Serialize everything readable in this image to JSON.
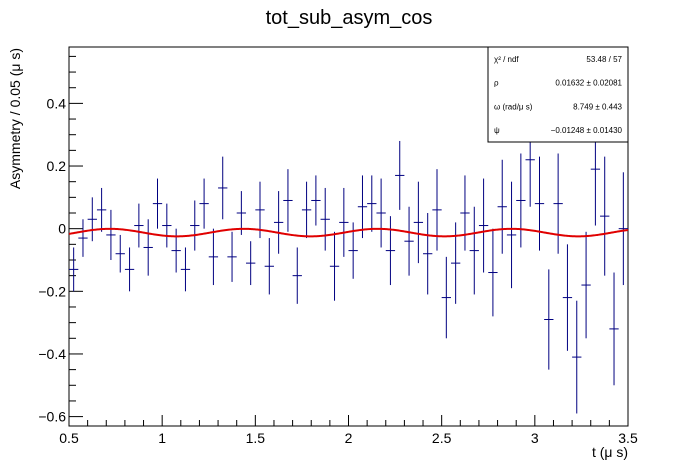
{
  "chart_data": {
    "type": "scatter",
    "title": "tot_sub_asym_cos",
    "xlabel": "t (μ s)",
    "ylabel": "Asymmetry / 0.05 (μ s)",
    "xlim": [
      0.5,
      3.5
    ],
    "ylim": [
      -0.63,
      0.58
    ],
    "x_ticks": [
      "0.5",
      "1",
      "1.5",
      "2",
      "2.5",
      "3",
      "3.5"
    ],
    "y_ticks": [
      "−0.6",
      "−0.4",
      "−0.2",
      "0",
      "0.2",
      "0.4"
    ],
    "x_tick_values": [
      0.5,
      1,
      1.5,
      2,
      2.5,
      3,
      3.5
    ],
    "y_tick_values": [
      -0.6,
      -0.4,
      -0.2,
      0,
      0.2,
      0.4
    ],
    "bin_width": 0.05,
    "series": [
      {
        "color": "#000080",
        "x": [
          0.525,
          0.575,
          0.625,
          0.675,
          0.725,
          0.775,
          0.825,
          0.875,
          0.925,
          0.975,
          1.025,
          1.075,
          1.125,
          1.175,
          1.225,
          1.275,
          1.325,
          1.375,
          1.425,
          1.475,
          1.525,
          1.575,
          1.625,
          1.675,
          1.725,
          1.775,
          1.825,
          1.875,
          1.925,
          1.975,
          2.025,
          2.075,
          2.125,
          2.175,
          2.225,
          2.275,
          2.325,
          2.375,
          2.425,
          2.475,
          2.525,
          2.575,
          2.625,
          2.675,
          2.725,
          2.775,
          2.825,
          2.875,
          2.925,
          2.975,
          3.025,
          3.075,
          3.125,
          3.175,
          3.225,
          3.275,
          3.325,
          3.375,
          3.425,
          3.475
        ],
        "y": [
          -0.13,
          -0.03,
          0.03,
          0.06,
          -0.02,
          -0.08,
          -0.13,
          0.01,
          -0.06,
          0.08,
          0.01,
          -0.07,
          -0.13,
          0.01,
          0.08,
          -0.09,
          0.13,
          -0.09,
          0.05,
          -0.11,
          0.06,
          -0.12,
          0.02,
          0.09,
          -0.15,
          0.06,
          0.09,
          0.03,
          -0.12,
          0.02,
          -0.07,
          0.07,
          0.08,
          0.05,
          -0.07,
          0.17,
          -0.04,
          0.02,
          -0.08,
          0.06,
          -0.22,
          -0.11,
          0.05,
          -0.07,
          0.01,
          -0.14,
          0.07,
          -0.02,
          0.09,
          0.22,
          0.08,
          -0.29,
          0.08,
          -0.22,
          -0.41,
          -0.18,
          0.19,
          0.04,
          -0.32,
          0
        ],
        "yerr": [
          0.07,
          0.06,
          0.07,
          0.07,
          0.08,
          0.06,
          0.07,
          0.07,
          0.09,
          0.08,
          0.07,
          0.07,
          0.07,
          0.08,
          0.08,
          0.09,
          0.1,
          0.08,
          0.07,
          0.07,
          0.09,
          0.09,
          0.1,
          0.1,
          0.09,
          0.09,
          0.08,
          0.1,
          0.11,
          0.11,
          0.09,
          0.1,
          0.09,
          0.11,
          0.11,
          0.11,
          0.11,
          0.13,
          0.13,
          0.13,
          0.13,
          0.13,
          0.12,
          0.14,
          0.15,
          0.14,
          0.15,
          0.17,
          0.15,
          0.15,
          0.15,
          0.16,
          0.16,
          0.17,
          0.18,
          0.17,
          0.18,
          0.19,
          0.18,
          0.18
        ]
      },
      {
        "color": "#e00000",
        "function": {
          "A": 0.012,
          "omega": 8.749,
          "phi": -0.01248,
          "offset": -0.0125
        }
      }
    ],
    "stats": {
      "rows": [
        {
          "label": "χ² / ndf",
          "value": "53.48 / 57"
        },
        {
          "label": "ρ",
          "value": "0.01632 ± 0.02081"
        },
        {
          "label": "ω (rad/μ s)",
          "value": "8.749 ± 0.443"
        },
        {
          "label": "ψ",
          "value": "−0.01248 ± 0.01430"
        }
      ]
    },
    "grid": false,
    "legend": "top-right"
  }
}
